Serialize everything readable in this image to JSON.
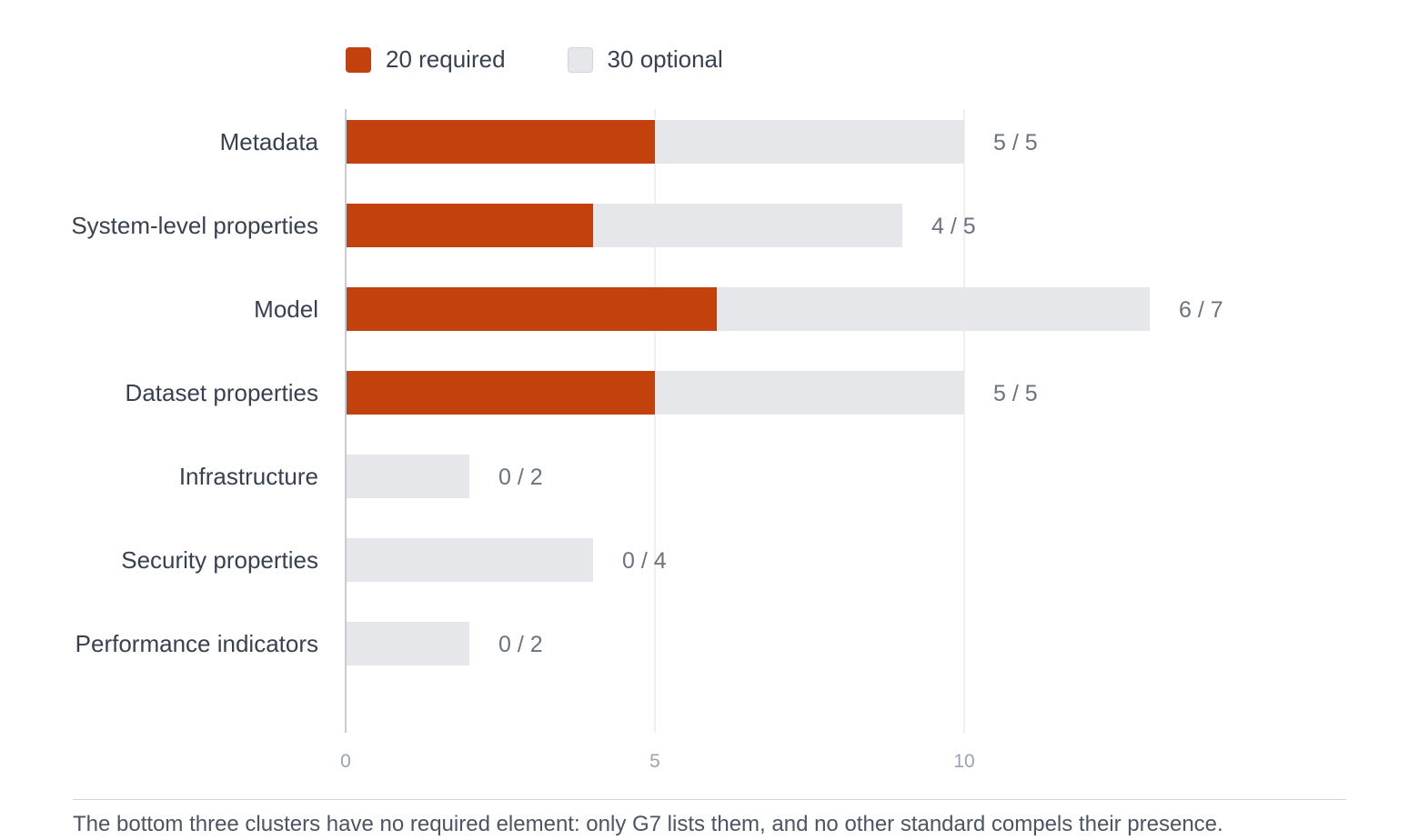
{
  "legend": {
    "required_label": "20 required",
    "optional_label": "30 optional"
  },
  "colors": {
    "required": "#c2410c",
    "optional": "#e5e7eb",
    "axis": "#c8cbd0",
    "grid": "#eef0f2",
    "category_text": "#374151",
    "value_text": "#6b7280",
    "tick_text": "#9ca3af"
  },
  "chart_data": {
    "type": "bar",
    "orientation": "horizontal",
    "stacked": true,
    "categories": [
      "Metadata",
      "System-level properties",
      "Model",
      "Dataset properties",
      "Infrastructure",
      "Security properties",
      "Performance indicators"
    ],
    "series": [
      {
        "name": "20 required",
        "values": [
          5,
          4,
          6,
          5,
          0,
          0,
          0
        ]
      },
      {
        "name": "30 optional",
        "values": [
          5,
          5,
          7,
          5,
          2,
          4,
          2
        ]
      }
    ],
    "value_labels": [
      "5 / 5",
      "4 / 5",
      "6 / 7",
      "5 / 5",
      "0 / 2",
      "0 / 4",
      "0 / 2"
    ],
    "xticks": [
      0,
      5,
      10
    ],
    "xlim": [
      0,
      16
    ],
    "grid": true,
    "legend_position": "top-left"
  },
  "caption": "The bottom three clusters have no required element: only G7 lists them, and no other standard compels their presence."
}
